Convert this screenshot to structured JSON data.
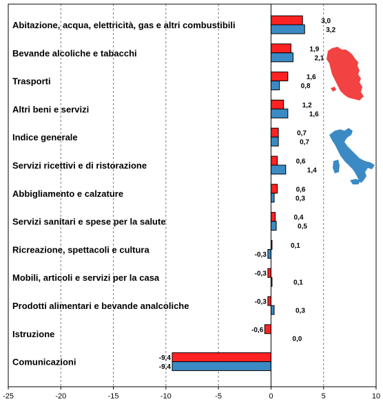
{
  "chart_data": {
    "type": "bar",
    "orientation": "horizontal",
    "categories": [
      "Abitazione, acqua, elettricità, gas e altri combustibili",
      "Bevande alcoliche e tabacchi",
      "Trasporti",
      "Altri beni e servizi",
      "Indice generale",
      "Servizi ricettivi e di ristorazione",
      "Abbigliamento e calzature",
      "Servizi sanitari e spese per la salute",
      "Ricreazione, spettacoli e cultura",
      "Mobili, articoli e servizi per la casa",
      "Prodotti alimentari e bevande analcoliche",
      "Istruzione",
      "Comunicazioni"
    ],
    "series": [
      {
        "color": "#ff2222",
        "values": [
          3.0,
          1.9,
          1.6,
          1.2,
          0.7,
          0.6,
          0.6,
          0.4,
          0.1,
          -0.3,
          -0.3,
          -0.6,
          -9.4
        ],
        "labels": [
          "3,0",
          "1,9",
          "1,6",
          "1,2",
          "0,7",
          "0,6",
          "0,6",
          "0,4",
          "0,1",
          "-0,3",
          "-0,3",
          "-0,6",
          "-9,4"
        ]
      },
      {
        "color": "#3b8ac4",
        "values": [
          3.2,
          2.1,
          0.8,
          1.6,
          0.7,
          1.4,
          0.3,
          0.5,
          -0.3,
          0.1,
          0.3,
          0.0,
          -9.4
        ],
        "labels": [
          "3,2",
          "2,1",
          "0,8",
          "1,6",
          "0,7",
          "1,4",
          "0,3",
          "0,5",
          "-0,3",
          "0,1",
          "0,3",
          "0,0",
          "-9,4"
        ]
      }
    ],
    "xlim": [
      -25,
      10
    ],
    "xticks": [
      -25,
      -20,
      -15,
      -10,
      -5,
      0,
      5,
      10
    ],
    "grid": "vertical-dashed",
    "legend": "map icons at right (red region, blue country)",
    "legend_icons": [
      "tuscany-map-icon",
      "italy-map-icon"
    ]
  }
}
